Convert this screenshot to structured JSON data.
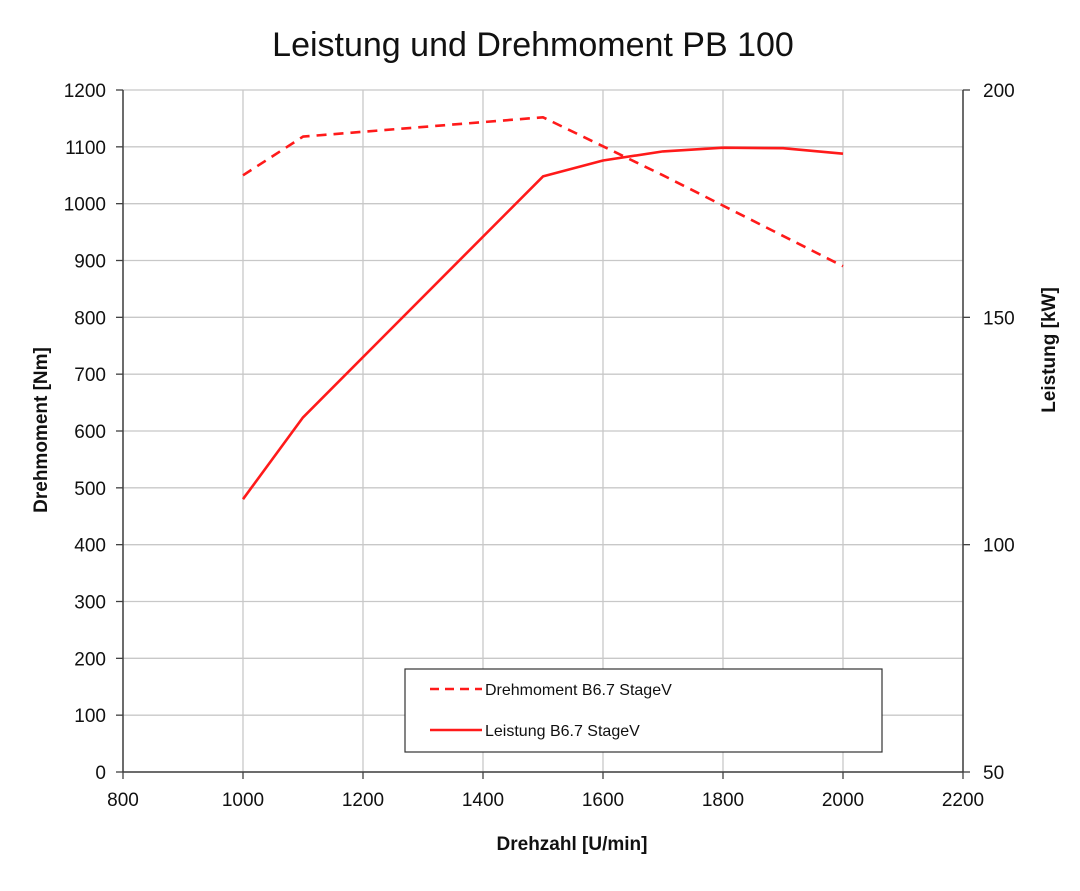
{
  "chart_data": {
    "type": "line",
    "title": "Leistung und Drehmoment PB 100",
    "xlabel": "Drehzahl [U/min]",
    "ylabel_left": "Drehmoment [Nm]",
    "ylabel_right": "Leistung [kW]",
    "xlim": [
      800,
      2200
    ],
    "ylim_left": [
      0,
      1200
    ],
    "ylim_right": [
      50,
      200
    ],
    "x_ticks": [
      800,
      1000,
      1200,
      1400,
      1600,
      1800,
      2000,
      2200
    ],
    "y_left_ticks": [
      0,
      100,
      200,
      300,
      400,
      500,
      600,
      700,
      800,
      900,
      1000,
      1100,
      1200
    ],
    "y_right_ticks": [
      50,
      100,
      150,
      200
    ],
    "grid": true,
    "legend_position": "bottom-right",
    "series": [
      {
        "name": "Drehmoment B6.7 StageV",
        "axis": "left",
        "style": "dashed",
        "color": "#ff1a1a",
        "x": [
          1000,
          1100,
          1500,
          1700,
          2000
        ],
        "y": [
          1050,
          1118,
          1152,
          1050,
          890
        ]
      },
      {
        "name": "Leistung B6.7 StageV",
        "axis": "right",
        "style": "solid",
        "color": "#ff1a1a",
        "x": [
          1000,
          1100,
          1500,
          1600,
          1700,
          1800,
          1900,
          2000
        ],
        "y": [
          110,
          128,
          181,
          184.5,
          186.5,
          187.3,
          187.2,
          186
        ]
      }
    ]
  },
  "colors": {
    "series": "#ff1a1a",
    "grid": "#c8c8c8",
    "axis": "#404040",
    "text": "#111111"
  }
}
